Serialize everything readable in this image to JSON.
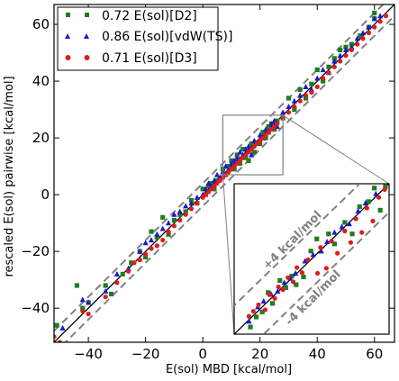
{
  "chart_data": {
    "type": "scatter",
    "xlabel": "E(sol) MBD  [kcal/mol]",
    "ylabel": "rescaled E(sol) pairwise  [kcal/mol]",
    "xlim": [
      -52,
      67
    ],
    "ylim": [
      -52,
      67
    ],
    "xticks": [
      -40,
      -20,
      0,
      20,
      40,
      60
    ],
    "yticks": [
      -40,
      -20,
      0,
      20,
      40,
      60
    ],
    "tick_labels": {
      "x": [
        "−40",
        "−20",
        "0",
        "20",
        "40",
        "60"
      ],
      "y": [
        "−40",
        "−20",
        "0",
        "20",
        "40",
        "60"
      ]
    },
    "grid": false,
    "legend_position": "top-left",
    "reference_lines": [
      {
        "kind": "identity",
        "offset": 0,
        "color": "#000000",
        "style": "solid"
      },
      {
        "kind": "offset",
        "offset": 4,
        "color": "#808080",
        "style": "dashed"
      },
      {
        "kind": "offset",
        "offset": -4,
        "color": "#808080",
        "style": "dashed"
      }
    ],
    "series": [
      {
        "name": "0.72 E(sol)[D2]",
        "marker": "square",
        "color": "#1e7d1e",
        "points": [
          [
            -51,
            -46
          ],
          [
            -44,
            -32
          ],
          [
            -42,
            -40
          ],
          [
            -40,
            -38
          ],
          [
            -34,
            -32
          ],
          [
            -32,
            -35
          ],
          [
            -28,
            -28
          ],
          [
            -25,
            -24
          ],
          [
            -22,
            -20
          ],
          [
            -20,
            -22
          ],
          [
            -18,
            -13
          ],
          [
            -16,
            -15
          ],
          [
            -14,
            -8
          ],
          [
            -12,
            -14
          ],
          [
            -10,
            -9
          ],
          [
            -8,
            -7
          ],
          [
            -6,
            -6
          ],
          [
            -4,
            -2
          ],
          [
            -2,
            -3
          ],
          [
            0,
            2
          ],
          [
            1,
            0
          ],
          [
            2,
            3
          ],
          [
            3,
            4
          ],
          [
            4,
            2
          ],
          [
            5,
            5
          ],
          [
            6,
            6
          ],
          [
            7,
            9
          ],
          [
            8,
            7
          ],
          [
            9,
            10
          ],
          [
            10,
            12
          ],
          [
            11,
            9
          ],
          [
            12,
            14
          ],
          [
            13,
            11
          ],
          [
            14,
            16
          ],
          [
            15,
            13
          ],
          [
            16,
            12
          ],
          [
            17,
            18
          ],
          [
            18,
            15
          ],
          [
            20,
            18
          ],
          [
            21,
            22
          ],
          [
            22,
            20
          ],
          [
            23,
            24
          ],
          [
            24,
            25
          ],
          [
            25,
            23
          ],
          [
            26,
            26
          ],
          [
            28,
            27
          ],
          [
            30,
            34
          ],
          [
            32,
            30
          ],
          [
            34,
            37
          ],
          [
            36,
            34
          ],
          [
            38,
            39
          ],
          [
            40,
            44
          ],
          [
            42,
            40
          ],
          [
            44,
            45
          ],
          [
            46,
            48
          ],
          [
            48,
            51
          ],
          [
            50,
            52
          ],
          [
            52,
            53
          ],
          [
            55,
            56
          ],
          [
            58,
            59
          ],
          [
            60,
            64
          ],
          [
            60,
            62
          ]
        ]
      },
      {
        "name": "0.86 E(sol)[vdW(TS)]",
        "marker": "triangle",
        "color": "#1a1acc",
        "points": [
          [
            -49,
            -47
          ],
          [
            -42,
            -37
          ],
          [
            -40,
            -38
          ],
          [
            -34,
            -34
          ],
          [
            -30,
            -28
          ],
          [
            -26,
            -26
          ],
          [
            -22,
            -20
          ],
          [
            -20,
            -17
          ],
          [
            -18,
            -16
          ],
          [
            -16,
            -14
          ],
          [
            -14,
            -12
          ],
          [
            -12,
            -10
          ],
          [
            -10,
            -7
          ],
          [
            -8,
            -6
          ],
          [
            -6,
            -4
          ],
          [
            -4,
            -3
          ],
          [
            -2,
            -1
          ],
          [
            0,
            0
          ],
          [
            1,
            2
          ],
          [
            2,
            4
          ],
          [
            3,
            3
          ],
          [
            4,
            5
          ],
          [
            5,
            7
          ],
          [
            6,
            6
          ],
          [
            7,
            8
          ],
          [
            8,
            10
          ],
          [
            9,
            9
          ],
          [
            10,
            11
          ],
          [
            11,
            12
          ],
          [
            12,
            13
          ],
          [
            13,
            15
          ],
          [
            14,
            14
          ],
          [
            15,
            16
          ],
          [
            16,
            17
          ],
          [
            17,
            14
          ],
          [
            18,
            19
          ],
          [
            19,
            18
          ],
          [
            20,
            21
          ],
          [
            21,
            20
          ],
          [
            22,
            23
          ],
          [
            23,
            22
          ],
          [
            24,
            25
          ],
          [
            25,
            26
          ],
          [
            26,
            24
          ],
          [
            28,
            29
          ],
          [
            30,
            31
          ],
          [
            32,
            33
          ],
          [
            34,
            35
          ],
          [
            36,
            38
          ],
          [
            38,
            37
          ],
          [
            40,
            41
          ],
          [
            42,
            44
          ],
          [
            44,
            43
          ],
          [
            46,
            47
          ],
          [
            48,
            49
          ],
          [
            50,
            51
          ],
          [
            52,
            52
          ],
          [
            54,
            55
          ],
          [
            56,
            57
          ],
          [
            58,
            59
          ],
          [
            60,
            62
          ],
          [
            62,
            63
          ]
        ]
      },
      {
        "name": "0.71 E(sol)[D3]",
        "marker": "circle",
        "color": "#dd1c1c",
        "points": [
          [
            -52,
            -50
          ],
          [
            -50,
            -52
          ],
          [
            -42,
            -41
          ],
          [
            -40,
            -42
          ],
          [
            -34,
            -36
          ],
          [
            -30,
            -31
          ],
          [
            -26,
            -27
          ],
          [
            -24,
            -24
          ],
          [
            -22,
            -23
          ],
          [
            -20,
            -21
          ],
          [
            -18,
            -19
          ],
          [
            -16,
            -18
          ],
          [
            -14,
            -16
          ],
          [
            -12,
            -13
          ],
          [
            -10,
            -11
          ],
          [
            -8,
            -9
          ],
          [
            -6,
            -7
          ],
          [
            -4,
            -5
          ],
          [
            -2,
            -3
          ],
          [
            0,
            -1
          ],
          [
            1,
            0
          ],
          [
            2,
            1
          ],
          [
            3,
            2
          ],
          [
            4,
            3
          ],
          [
            5,
            4
          ],
          [
            6,
            5
          ],
          [
            7,
            6
          ],
          [
            8,
            7
          ],
          [
            9,
            8
          ],
          [
            10,
            9
          ],
          [
            11,
            10
          ],
          [
            12,
            11
          ],
          [
            13,
            12
          ],
          [
            14,
            13
          ],
          [
            15,
            14
          ],
          [
            16,
            15
          ],
          [
            17,
            16
          ],
          [
            18,
            17
          ],
          [
            19,
            18
          ],
          [
            20,
            19
          ],
          [
            21,
            20
          ],
          [
            22,
            21
          ],
          [
            23,
            22
          ],
          [
            24,
            23
          ],
          [
            25,
            24
          ],
          [
            26,
            25
          ],
          [
            28,
            27
          ],
          [
            30,
            29
          ],
          [
            32,
            31
          ],
          [
            34,
            33
          ],
          [
            36,
            35
          ],
          [
            38,
            36
          ],
          [
            40,
            38
          ],
          [
            42,
            41
          ],
          [
            44,
            43
          ],
          [
            46,
            45
          ],
          [
            48,
            47
          ],
          [
            50,
            49
          ],
          [
            52,
            51
          ],
          [
            54,
            53
          ],
          [
            56,
            55
          ],
          [
            58,
            57
          ],
          [
            60,
            59
          ],
          [
            62,
            61
          ],
          [
            64,
            63
          ]
        ]
      }
    ],
    "inset": {
      "x_range": [
        7,
        28
      ],
      "y_range": [
        7,
        28
      ],
      "annotations": [
        "+4 kcal/mol",
        "-4 kcal/mol"
      ],
      "outline_color": "#808080",
      "points_red": [
        [
          9,
          9.5
        ],
        [
          9.6,
          10.2
        ],
        [
          10.3,
          11.1
        ],
        [
          11.2,
          10.4
        ],
        [
          11.8,
          12.5
        ],
        [
          12.5,
          12.0
        ],
        [
          13.0,
          13.6
        ],
        [
          13.6,
          13.2
        ],
        [
          14.3,
          14.9
        ],
        [
          15.0,
          14.3
        ],
        [
          15.5,
          16.3
        ],
        [
          16.2,
          15.6
        ],
        [
          17.0,
          17.4
        ],
        [
          18.3,
          15.5
        ],
        [
          18.7,
          19.1
        ],
        [
          19.5,
          16.2
        ],
        [
          20.2,
          20.0
        ],
        [
          21.0,
          18.3
        ],
        [
          22.0,
          21.4
        ],
        [
          22.8,
          19.8
        ],
        [
          23.5,
          23.1
        ],
        [
          24.3,
          21.2
        ],
        [
          25.0,
          24.6
        ],
        [
          25.8,
          22.8
        ],
        [
          26.6,
          26.1
        ],
        [
          27.4,
          27.2
        ]
      ],
      "points_green": [
        [
          9.2,
          8.0
        ],
        [
          10.0,
          9.4
        ],
        [
          10.8,
          10.1
        ],
        [
          11.6,
          12.8
        ],
        [
          12.2,
          11.3
        ],
        [
          13.2,
          14.5
        ],
        [
          14.0,
          13.5
        ],
        [
          14.8,
          15.1
        ],
        [
          15.4,
          13.9
        ],
        [
          16.4,
          15.0
        ],
        [
          17.4,
          18.6
        ],
        [
          18.2,
          20.3
        ],
        [
          19.8,
          21.0
        ],
        [
          20.6,
          19.6
        ],
        [
          22.0,
          22.6
        ],
        [
          23.0,
          21.0
        ],
        [
          24.0,
          24.8
        ],
        [
          25.2,
          25.5
        ],
        [
          26.0,
          27.4
        ],
        [
          26.8,
          24.3
        ],
        [
          27.5,
          27.6
        ]
      ],
      "points_blue": [
        [
          9.0,
          8.8
        ],
        [
          10.2,
          10.8
        ],
        [
          11.0,
          11.6
        ],
        [
          12.0,
          12.6
        ],
        [
          12.9,
          13.0
        ],
        [
          13.8,
          14.2
        ],
        [
          14.6,
          14.8
        ],
        [
          15.3,
          15.5
        ],
        [
          16.6,
          17.2
        ],
        [
          17.7,
          18.1
        ],
        [
          18.8,
          18.6
        ],
        [
          19.6,
          19.9
        ],
        [
          20.6,
          21.2
        ],
        [
          21.6,
          22.0
        ],
        [
          22.6,
          22.4
        ],
        [
          23.8,
          24.2
        ],
        [
          24.8,
          25.3
        ],
        [
          26.2,
          26.6
        ]
      ]
    }
  }
}
